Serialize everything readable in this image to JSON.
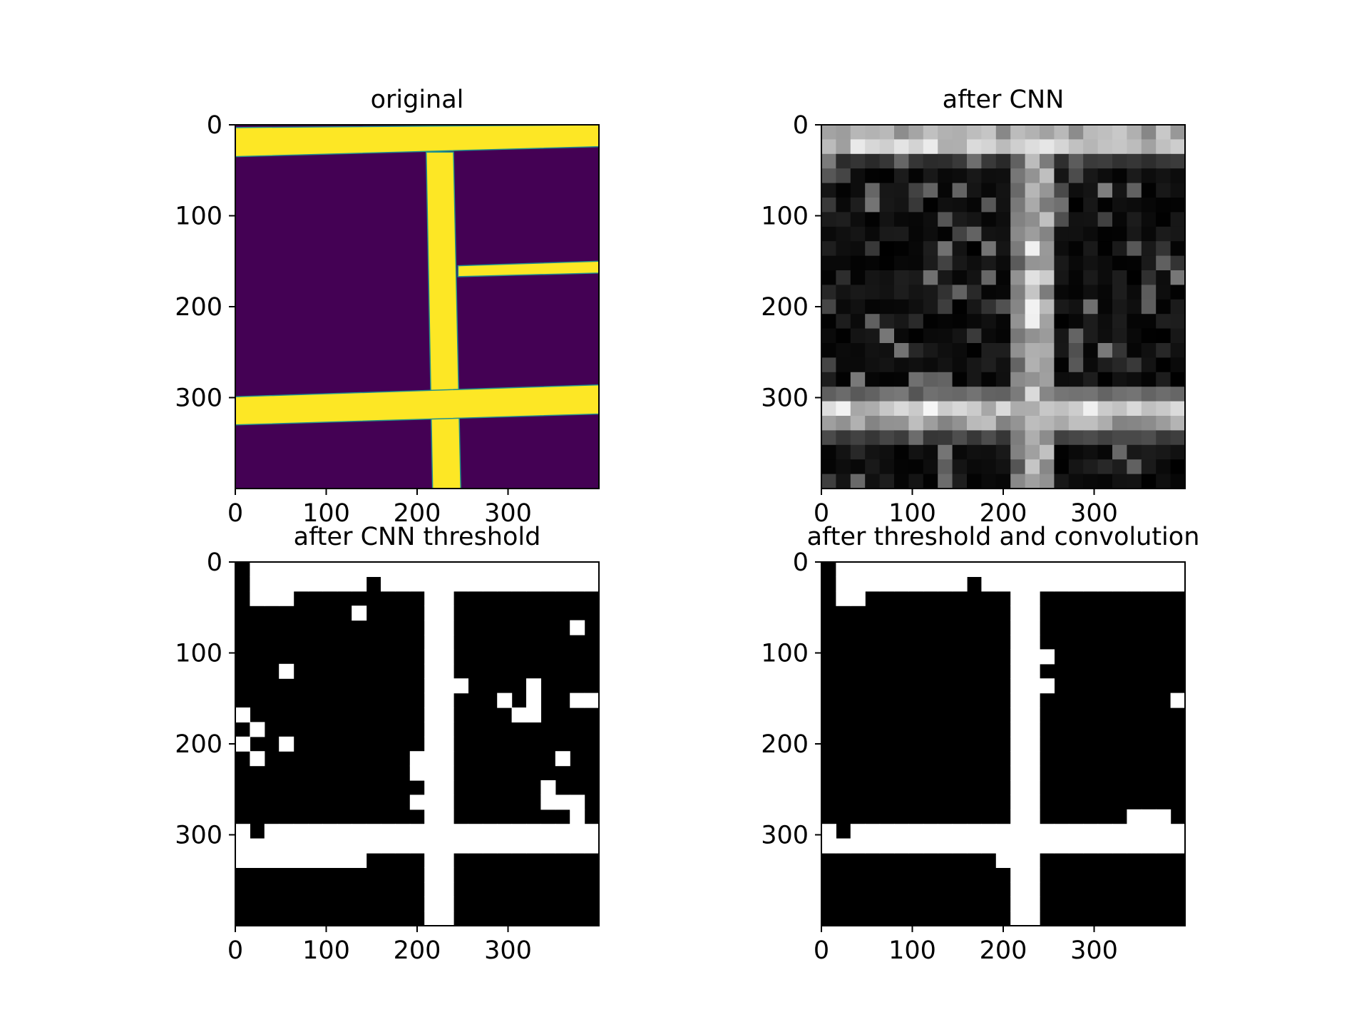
{
  "chart_data": [
    {
      "type": "heatmap",
      "title": "original",
      "colormap": "viridis",
      "xlim": [
        0,
        400
      ],
      "ylim": [
        400,
        0
      ],
      "x_ticks": [
        "0",
        "100",
        "200",
        "300"
      ],
      "y_ticks": [
        "0",
        "100",
        "200",
        "300"
      ],
      "background_value": 0,
      "roads": [
        {
          "label": "top horizontal road",
          "polygon": [
            [
              0,
              3
            ],
            [
              400,
              0
            ],
            [
              400,
              24
            ],
            [
              0,
              35
            ]
          ]
        },
        {
          "label": "vertical road",
          "polygon": [
            [
              210,
              30
            ],
            [
              240,
              30
            ],
            [
              248,
              400
            ],
            [
              217,
              400
            ]
          ]
        },
        {
          "label": "right middle road",
          "polygon": [
            [
              245,
              155
            ],
            [
              400,
              150
            ],
            [
              400,
              163
            ],
            [
              245,
              167
            ]
          ]
        },
        {
          "label": "lower horizontal road",
          "polygon": [
            [
              0,
              299
            ],
            [
              400,
              286
            ],
            [
              400,
              318
            ],
            [
              0,
              330
            ]
          ]
        }
      ],
      "colors": {
        "background": "#440154",
        "road": "#fde725",
        "edge": "#21918c"
      }
    },
    {
      "type": "heatmap",
      "title": "after CNN",
      "colormap": "gray",
      "xlim": [
        0,
        400
      ],
      "ylim": [
        400,
        0
      ],
      "x_ticks": [
        "0",
        "100",
        "200",
        "300"
      ],
      "y_ticks": [
        "0",
        "100",
        "200",
        "300"
      ],
      "grid_size": 25,
      "cell_size": 16,
      "highlight_rows": {
        "0": 0.75,
        "1": 0.88,
        "2": 0.22,
        "18": 0.45,
        "19": 0.92,
        "20": 0.72,
        "21": 0.3
      },
      "highlight_columns": {
        "13": 0.55,
        "14": 0.92,
        "15": 0.78
      }
    },
    {
      "type": "heatmap",
      "title": "after CNN threshold",
      "colormap": "binary",
      "xlim": [
        0,
        400
      ],
      "ylim": [
        400,
        0
      ],
      "x_ticks": [
        "0",
        "100",
        "200",
        "300"
      ],
      "y_ticks": [
        "0",
        "100",
        "200",
        "300"
      ],
      "grid_size": 25,
      "cell_size": 16,
      "white_cells": [
        [
          0,
          0
        ],
        [
          0,
          1
        ],
        [
          0,
          2
        ],
        [
          0,
          3
        ],
        [
          0,
          4
        ],
        [
          0,
          5
        ],
        [
          0,
          6
        ],
        [
          0,
          7
        ],
        [
          0,
          8
        ],
        [
          0,
          9
        ],
        [
          0,
          10
        ],
        [
          0,
          11
        ],
        [
          0,
          12
        ],
        [
          0,
          13
        ],
        [
          0,
          14
        ],
        [
          0,
          15
        ],
        [
          0,
          16
        ],
        [
          0,
          17
        ],
        [
          0,
          18
        ],
        [
          0,
          19
        ],
        [
          0,
          20
        ],
        [
          0,
          21
        ],
        [
          0,
          22
        ],
        [
          0,
          23
        ],
        [
          0,
          24
        ],
        [
          1,
          1
        ],
        [
          1,
          2
        ],
        [
          1,
          3
        ],
        [
          1,
          4
        ],
        [
          1,
          5
        ],
        [
          1,
          6
        ],
        [
          1,
          7
        ],
        [
          1,
          8
        ],
        [
          1,
          11
        ],
        [
          1,
          12
        ],
        [
          1,
          13
        ],
        [
          1,
          14
        ],
        [
          1,
          15
        ],
        [
          1,
          16
        ],
        [
          1,
          17
        ],
        [
          1,
          18
        ],
        [
          1,
          19
        ],
        [
          1,
          20
        ],
        [
          1,
          21
        ],
        [
          1,
          22
        ],
        [
          1,
          23
        ],
        [
          1,
          24
        ],
        [
          2,
          1
        ],
        [
          2,
          2
        ],
        [
          2,
          3
        ],
        [
          2,
          13
        ],
        [
          2,
          14
        ],
        [
          3,
          13
        ],
        [
          3,
          14
        ],
        [
          4,
          8
        ],
        [
          4,
          13
        ],
        [
          4,
          14
        ],
        [
          5,
          13
        ],
        [
          5,
          14
        ],
        [
          5,
          23
        ],
        [
          6,
          13
        ],
        [
          6,
          14
        ],
        [
          7,
          13
        ],
        [
          7,
          14
        ],
        [
          8,
          13
        ],
        [
          8,
          14
        ],
        [
          9,
          13
        ],
        [
          9,
          14
        ],
        [
          7,
          3
        ],
        [
          8,
          13
        ],
        [
          8,
          14
        ],
        [
          8,
          15
        ],
        [
          8,
          20
        ],
        [
          9,
          13
        ],
        [
          9,
          14
        ],
        [
          9,
          20
        ],
        [
          9,
          23
        ],
        [
          9,
          24
        ],
        [
          10,
          13
        ],
        [
          10,
          14
        ],
        [
          10,
          18
        ],
        [
          10,
          19
        ],
        [
          10,
          20
        ],
        [
          11,
          13
        ],
        [
          11,
          14
        ],
        [
          11,
          18
        ],
        [
          11,
          19
        ],
        [
          11,
          20
        ],
        [
          12,
          13
        ],
        [
          12,
          14
        ],
        [
          13,
          13
        ],
        [
          13,
          14
        ],
        [
          14,
          13
        ],
        [
          14,
          14
        ],
        [
          15,
          13
        ],
        [
          15,
          14
        ],
        [
          15,
          0
        ],
        [
          16,
          13
        ],
        [
          16,
          14
        ],
        [
          16,
          1
        ],
        [
          17,
          13
        ],
        [
          17,
          14
        ],
        [
          17,
          3
        ],
        [
          17,
          22
        ],
        [
          18,
          13
        ],
        [
          18,
          14
        ],
        [
          18,
          1
        ],
        [
          19,
          13
        ],
        [
          19,
          14
        ],
        [
          20,
          12
        ],
        [
          20,
          13
        ],
        [
          20,
          14
        ],
        [
          20,
          21
        ],
        [
          21,
          12
        ],
        [
          21,
          13
        ],
        [
          21,
          14
        ],
        [
          22,
          13
        ],
        [
          22,
          14
        ],
        [
          23,
          13
        ],
        [
          23,
          14
        ],
        [
          24,
          13
        ],
        [
          24,
          14
        ],
        [
          25,
          13
        ],
        [
          25,
          14
        ]
      ]
    },
    {
      "type": "heatmap",
      "title": "after threshold and convolution",
      "colormap": "binary",
      "xlim": [
        0,
        400
      ],
      "ylim": [
        400,
        0
      ],
      "x_ticks": [
        "0",
        "100",
        "200",
        "300"
      ],
      "y_ticks": [
        "0",
        "100",
        "200",
        "300"
      ],
      "grid_size": 25
    }
  ]
}
